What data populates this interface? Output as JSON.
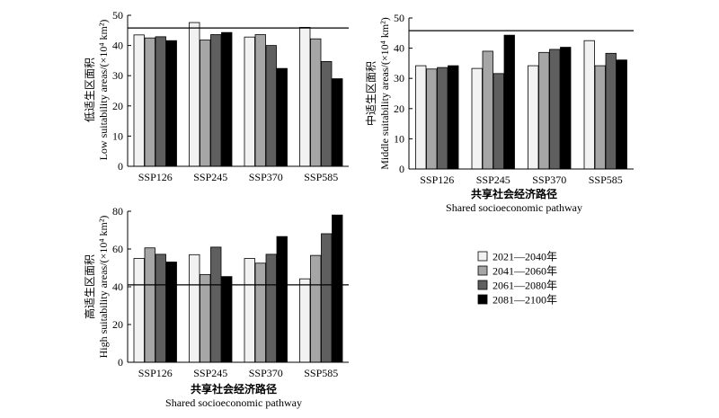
{
  "series_colors": [
    "#f2f2f2",
    "#a6a6a6",
    "#5f5f5f",
    "#000000"
  ],
  "legend": [
    "2021—2040年",
    "2041—2060年",
    "2061—2080年",
    "2081—2100年"
  ],
  "shared_xlabel": {
    "zh": "共享社会经济路径",
    "en": "Shared socioeconomic pathway"
  },
  "chart_data": [
    {
      "type": "bar",
      "panel": "low",
      "categories": [
        "SSP126",
        "SSP245",
        "SSP370",
        "SSP585"
      ],
      "ylabel_zh": "低适生区面积",
      "ylabel_en": "Low suitability areas/(×10⁴ km²)",
      "ylim": [
        0,
        50
      ],
      "yticks": [
        0,
        10,
        20,
        30,
        40,
        50
      ],
      "reference_line": 45.8,
      "series": [
        {
          "values": [
            43.5,
            47.6,
            42.8,
            46.0
          ]
        },
        {
          "values": [
            42.5,
            41.8,
            43.6,
            42.2
          ]
        },
        {
          "values": [
            42.9,
            43.6,
            40.0,
            34.7
          ]
        },
        {
          "values": [
            41.6,
            44.3,
            32.4,
            29.0
          ]
        }
      ]
    },
    {
      "type": "bar",
      "panel": "middle",
      "categories": [
        "SSP126",
        "SSP245",
        "SSP370",
        "SSP585"
      ],
      "ylabel_zh": "中适生区面积",
      "ylabel_en": "Middle suitability areas/(×10⁴ km²)",
      "ylim": [
        0,
        50
      ],
      "yticks": [
        0,
        10,
        20,
        30,
        40,
        50
      ],
      "reference_line": 45.8,
      "series": [
        {
          "values": [
            34.2,
            33.3,
            34.2,
            42.5
          ]
        },
        {
          "values": [
            33.1,
            39.0,
            38.6,
            34.2
          ]
        },
        {
          "values": [
            33.6,
            31.6,
            39.6,
            38.3
          ]
        },
        {
          "values": [
            34.2,
            44.3,
            40.3,
            36.1
          ]
        }
      ]
    },
    {
      "type": "bar",
      "panel": "high",
      "categories": [
        "SSP126",
        "SSP245",
        "SSP370",
        "SSP585"
      ],
      "ylabel_zh": "高适生区面积",
      "ylabel_en": "High suitability areas/(×10⁴ km²)",
      "ylim": [
        0,
        80
      ],
      "yticks": [
        0,
        20,
        40,
        60,
        80
      ],
      "reference_line": 41.0,
      "series": [
        {
          "values": [
            55.0,
            57.0,
            55.0,
            44.2
          ]
        },
        {
          "values": [
            60.6,
            46.5,
            52.5,
            56.6
          ]
        },
        {
          "values": [
            57.2,
            61.0,
            57.2,
            68.1
          ]
        },
        {
          "values": [
            53.1,
            45.4,
            66.6,
            78.0
          ]
        }
      ]
    }
  ]
}
